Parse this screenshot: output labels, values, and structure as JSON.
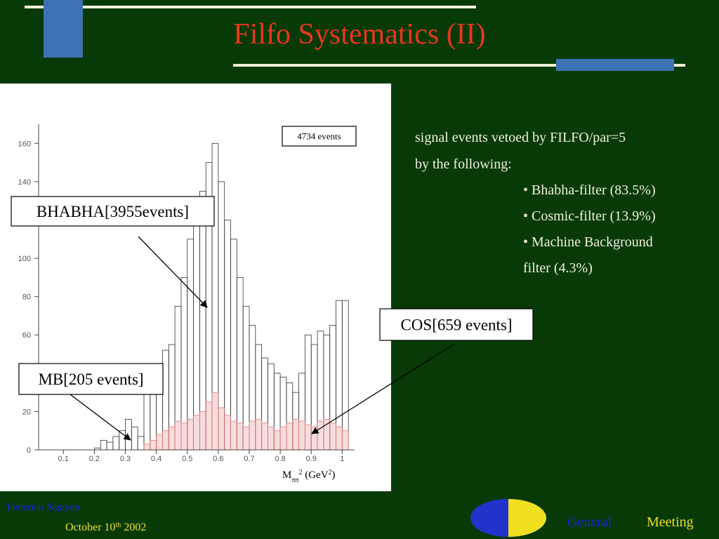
{
  "slide": {
    "title": "Filfo Systematics (II)",
    "intro": [
      "signal events vetoed by FILFO/par=5",
      "by the following:"
    ],
    "bullets": [
      "• Bhabha-filter (83.5%)",
      "• Cosmic-filter (13.9%)",
      "• Machine Background",
      "filter (4.3%)"
    ],
    "footer": {
      "author": "Federico Nguyen",
      "date": [
        "October 10",
        "th",
        " 2002"
      ],
      "event": [
        "General",
        "Meeting"
      ]
    }
  },
  "chart_data": {
    "type": "histogram",
    "bins": [
      0.02,
      0.04,
      0.06,
      0.08,
      0.1,
      0.12,
      0.14,
      0.16,
      0.18,
      0.2,
      0.22,
      0.24,
      0.26,
      0.28,
      0.3,
      0.32,
      0.34,
      0.36,
      0.38,
      0.4,
      0.42,
      0.44,
      0.46,
      0.48,
      0.5,
      0.52,
      0.54,
      0.56,
      0.58,
      0.6,
      0.62,
      0.64,
      0.66,
      0.68,
      0.7,
      0.72,
      0.74,
      0.76,
      0.78,
      0.8,
      0.82,
      0.84,
      0.86,
      0.88,
      0.9,
      0.92,
      0.94,
      0.96,
      0.98,
      1.0,
      1.02
    ],
    "series": [
      {
        "color": "#333333",
        "values": [
          0,
          0,
          0,
          0,
          0,
          0,
          0,
          0,
          0,
          1,
          5,
          4,
          7,
          10,
          16,
          12,
          7,
          30,
          40,
          45,
          52,
          55,
          75,
          90,
          110,
          120,
          135,
          150,
          160,
          140,
          120,
          110,
          90,
          75,
          65,
          55,
          48,
          45,
          40,
          38,
          35,
          30,
          40,
          60,
          55,
          62,
          60,
          65,
          78,
          78
        ]
      },
      {
        "color": "#e07878",
        "values": [
          0,
          0,
          0,
          0,
          0,
          0,
          0,
          0,
          0,
          0,
          0,
          0,
          0,
          0,
          0,
          0,
          0,
          3,
          5,
          8,
          10,
          12,
          15,
          14,
          16,
          18,
          20,
          25,
          30,
          22,
          18,
          15,
          14,
          12,
          15,
          16,
          14,
          12,
          10,
          12,
          14,
          16,
          15,
          13,
          12,
          15,
          16,
          14,
          12,
          10
        ]
      }
    ],
    "xlim": [
      0.02,
      1.04
    ],
    "ylim": [
      0,
      170
    ],
    "xticks": [
      0.1,
      0.2,
      0.3,
      0.4,
      0.5,
      0.6,
      0.7,
      0.8,
      0.9,
      1
    ],
    "yticks": [
      0,
      20,
      40,
      60,
      80,
      100,
      120,
      140,
      160
    ],
    "x_label": [
      {
        "text": "M"
      },
      {
        "text": "ππ",
        "style": "sub"
      },
      {
        "text": "2",
        "style": "sup"
      },
      {
        "text": " (GeV"
      },
      {
        "text": "2",
        "style": "sup"
      },
      {
        "text": ")"
      }
    ],
    "annotations": [
      "4734 events",
      "BHABHA[3955events]",
      "MB[205 events]",
      "COS[659 events]"
    ]
  }
}
